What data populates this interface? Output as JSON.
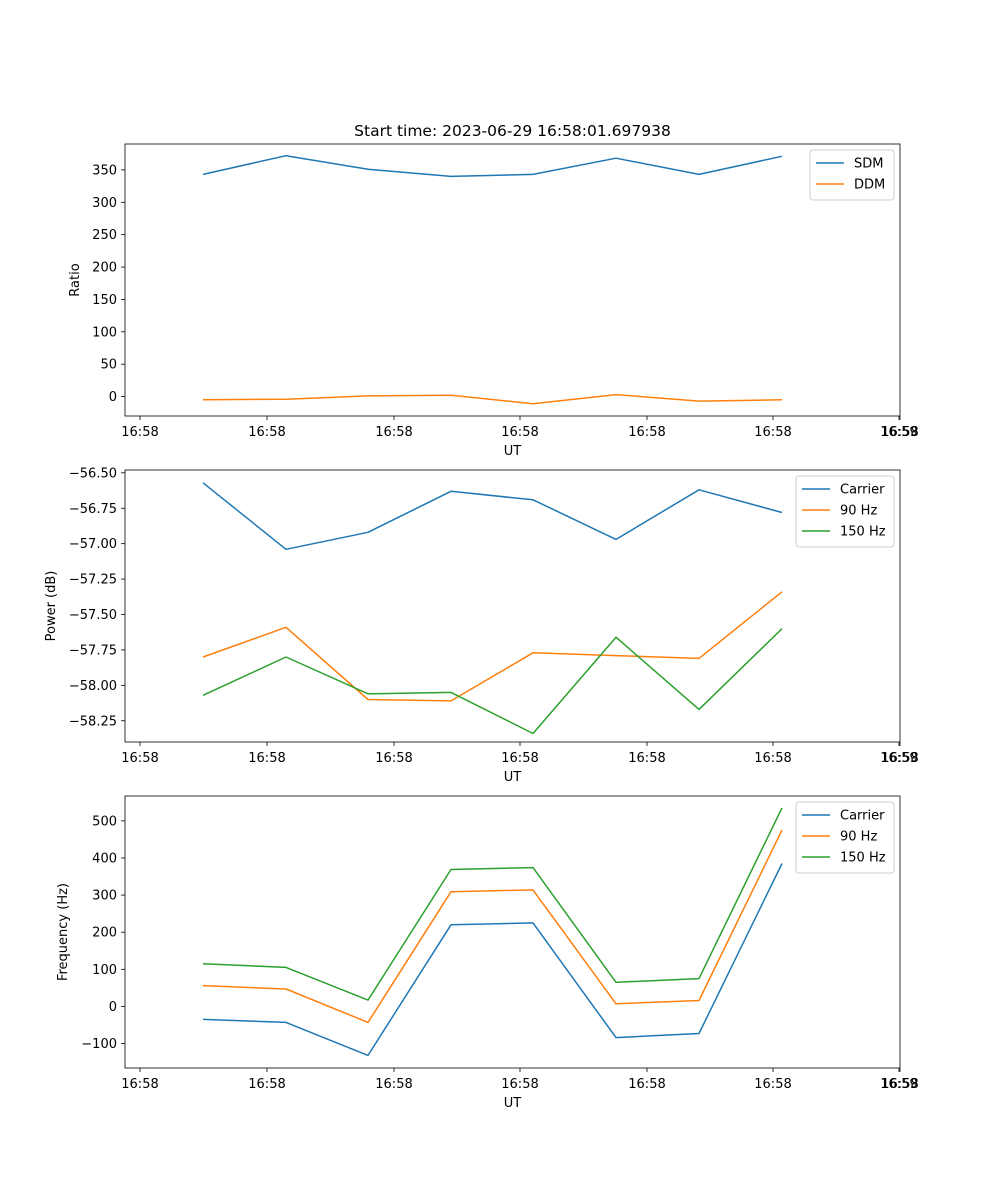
{
  "figure": {
    "title": "Start time: 2023-06-29 16:58:01.697938"
  },
  "chart_data": [
    {
      "type": "line",
      "title": "Start time: 2023-06-29 16:58:01.697938",
      "xlabel": "UT",
      "ylabel": "Ratio",
      "x_tick_labels": [
        "16:58",
        "16:58",
        "16:58",
        "16:58",
        "16:58",
        "16:58",
        "16:58"
      ],
      "x_tick_last": "16:59",
      "y_ticks": [
        0,
        50,
        100,
        150,
        200,
        250,
        300,
        350
      ],
      "ylim": [
        -30,
        390
      ],
      "grid": false,
      "legend_position": "top-right",
      "series": [
        {
          "name": "SDM",
          "color": "#1f77b4",
          "values": [
            343,
            372,
            351,
            340,
            343,
            368,
            343,
            371
          ]
        },
        {
          "name": "DDM",
          "color": "#ff7f0e",
          "values": [
            -5,
            -4,
            1,
            2,
            -11,
            3,
            -7,
            -5
          ]
        }
      ]
    },
    {
      "type": "line",
      "title": "",
      "xlabel": "UT",
      "ylabel": "Power (dB)",
      "x_tick_labels": [
        "16:58",
        "16:58",
        "16:58",
        "16:58",
        "16:58",
        "16:58",
        "16:58"
      ],
      "x_tick_last": "16:59",
      "y_ticks": [
        -58.25,
        -58.0,
        -57.75,
        -57.5,
        -57.25,
        -57.0,
        -56.75,
        -56.5
      ],
      "y_tick_labels": [
        "−58.25",
        "−58.00",
        "−57.75",
        "−57.50",
        "−57.25",
        "−57.00",
        "−56.75",
        "−56.50"
      ],
      "ylim": [
        -58.4,
        -56.48
      ],
      "grid": false,
      "legend_position": "top-right",
      "series": [
        {
          "name": "Carrier",
          "color": "#1f77b4",
          "values": [
            -56.57,
            -57.04,
            -56.92,
            -56.63,
            -56.69,
            -56.97,
            -56.62,
            -56.78
          ]
        },
        {
          "name": "90 Hz",
          "color": "#ff7f0e",
          "values": [
            -57.8,
            -57.59,
            -58.1,
            -58.11,
            -57.77,
            -57.79,
            -57.81,
            -57.34
          ]
        },
        {
          "name": "150 Hz",
          "color": "#2ca02c",
          "values": [
            -58.07,
            -57.8,
            -58.06,
            -58.05,
            -58.34,
            -57.66,
            -58.17,
            -57.6
          ]
        }
      ]
    },
    {
      "type": "line",
      "title": "",
      "xlabel": "UT",
      "ylabel": "Frequency (Hz)",
      "x_tick_labels": [
        "16:58",
        "16:58",
        "16:58",
        "16:58",
        "16:58",
        "16:58",
        "16:58"
      ],
      "x_tick_last": "16:59",
      "y_ticks": [
        -100,
        0,
        100,
        200,
        300,
        400,
        500
      ],
      "y_tick_labels": [
        "−100",
        "0",
        "100",
        "200",
        "300",
        "400",
        "500"
      ],
      "ylim": [
        -166,
        567
      ],
      "grid": false,
      "legend_position": "top-right",
      "series": [
        {
          "name": "Carrier",
          "color": "#1f77b4",
          "values": [
            -35,
            -43,
            -132,
            220,
            225,
            -84,
            -73,
            385
          ]
        },
        {
          "name": "90 Hz",
          "color": "#ff7f0e",
          "values": [
            56,
            47,
            -43,
            309,
            314,
            7,
            16,
            475
          ]
        },
        {
          "name": "150 Hz",
          "color": "#2ca02c",
          "values": [
            115,
            105,
            17,
            369,
            374,
            65,
            75,
            535
          ]
        }
      ]
    }
  ]
}
